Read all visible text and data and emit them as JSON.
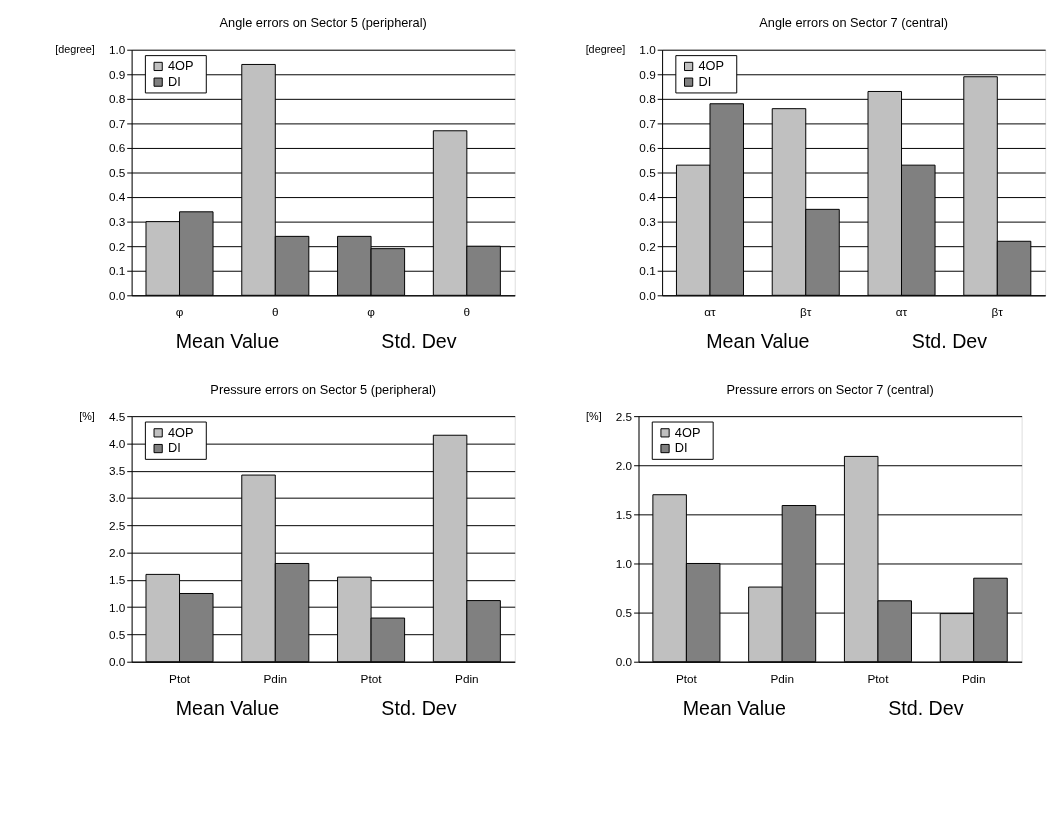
{
  "chart_data": [
    {
      "type": "bar",
      "title": "Angle errors on Sector 5 (peripheral)",
      "ylabel": "[degree]",
      "categories": [
        "φ",
        "θ",
        "φ",
        "θ"
      ],
      "series": [
        {
          "name": "4OP",
          "color": "#c0c0c0",
          "colors": [
            "#c0c0c0",
            "#c0c0c0",
            "#808080",
            "#c0c0c0"
          ],
          "values": [
            0.3,
            0.94,
            0.24,
            0.67
          ]
        },
        {
          "name": "DI",
          "color": "#808080",
          "values": [
            0.34,
            0.24,
            0.19,
            0.2
          ]
        }
      ],
      "ylim": [
        0,
        1.0
      ],
      "yticks": [
        {
          "value": 0,
          "label": "0.0"
        },
        0.1,
        0.2,
        0.3,
        0.4,
        0.5,
        0.6,
        0.7,
        0.8,
        0.9,
        {
          "value": 1,
          "label": "1.0"
        }
      ],
      "grid": "y",
      "legend": "top left",
      "annotations": [
        "Mean Value",
        "Std. Dev"
      ]
    },
    {
      "type": "bar",
      "title": "Angle errors on Sector 7 (central)",
      "ylabel": "[degree]",
      "categories": [
        "ατ",
        "βτ",
        "ατ",
        "βτ"
      ],
      "series": [
        {
          "name": "4OP",
          "color": "#c0c0c0",
          "values": [
            0.53,
            0.76,
            0.83,
            0.89
          ]
        },
        {
          "name": "DI",
          "color": "#808080",
          "values": [
            0.78,
            0.35,
            0.53,
            0.22
          ]
        }
      ],
      "ylim": [
        0,
        1.0
      ],
      "yticks": [
        {
          "value": 0,
          "label": "0.0"
        },
        0.1,
        0.2,
        0.3,
        0.4,
        0.5,
        0.6,
        0.7,
        0.8,
        0.9,
        {
          "value": 1,
          "label": "1.0"
        }
      ],
      "grid": "y",
      "legend": "top left",
      "annotations": [
        "Mean Value",
        "Std. Dev"
      ]
    },
    {
      "type": "bar",
      "title": "Pressure errors on Sector 5 (peripheral)",
      "ylabel": "[%]",
      "categories": [
        "Ptot",
        "Pdin",
        "Ptot",
        "Pdin"
      ],
      "series": [
        {
          "name": "4OP",
          "color": "#c0c0c0",
          "values": [
            1.6,
            3.42,
            1.55,
            4.15
          ]
        },
        {
          "name": "DI",
          "color": "#808080",
          "values": [
            1.25,
            1.8,
            0.8,
            1.12
          ]
        }
      ],
      "ylim": [
        0,
        4.5
      ],
      "yticks": [
        {
          "value": 0,
          "label": "0.0"
        },
        0.5,
        {
          "value": 1,
          "label": "1.0"
        },
        1.5,
        {
          "value": 2,
          "label": "2.0"
        },
        2.5,
        {
          "value": 3,
          "label": "3.0"
        },
        3.5,
        {
          "value": 4,
          "label": "4.0"
        },
        4.5
      ],
      "grid": "y",
      "legend": "top left",
      "annotations": [
        "Mean Value",
        "Std. Dev"
      ]
    },
    {
      "type": "bar",
      "title": "Pressure errors on Sector 7 (central)",
      "ylabel": "[%]",
      "categories": [
        "Ptot",
        "Pdin",
        "Ptot",
        "Pdin"
      ],
      "series": [
        {
          "name": "4OP",
          "color": "#c0c0c0",
          "values": [
            1.7,
            0.76,
            2.09,
            0.49
          ]
        },
        {
          "name": "DI",
          "color": "#808080",
          "values": [
            1.0,
            1.59,
            0.62,
            0.85
          ]
        }
      ],
      "ylim": [
        0,
        2.5
      ],
      "yticks": [
        {
          "value": 0,
          "label": "0.0"
        },
        0.5,
        {
          "value": 1,
          "label": "1.0"
        },
        1.5,
        {
          "value": 2,
          "label": "2.0"
        },
        2.5
      ],
      "grid": "y",
      "legend": "top left",
      "annotations": [
        "Mean Value",
        "Std. Dev"
      ]
    }
  ]
}
